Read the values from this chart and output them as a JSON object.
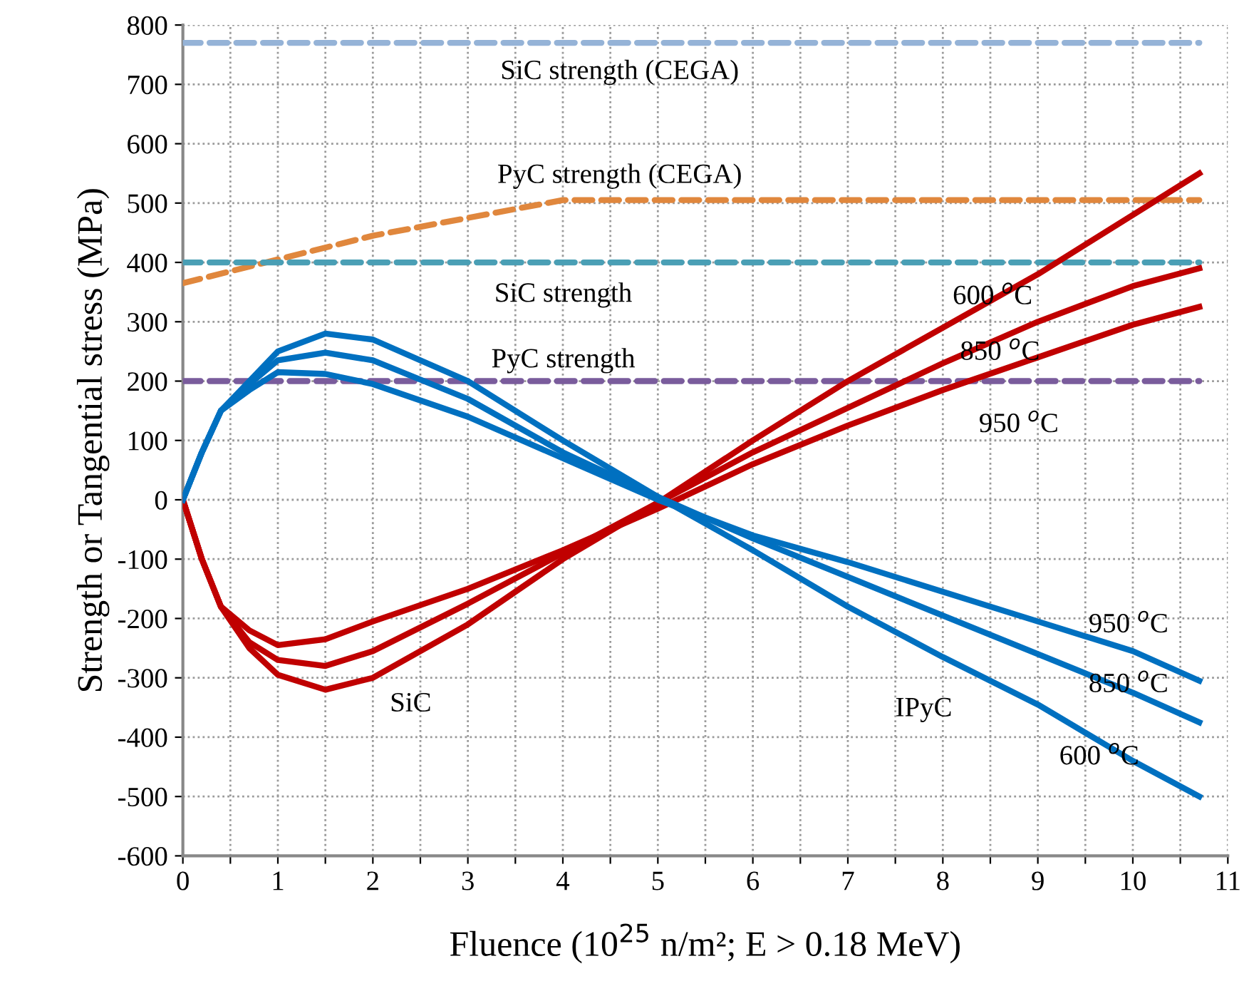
{
  "chart_data": {
    "type": "line",
    "xlabel": "Fluence (10$^{25}$ n/m²; E > 0.18 MeV)",
    "ylabel": "Strength or Tangential stress (MPa)",
    "xlim": [
      0,
      11
    ],
    "ylim": [
      -600,
      800
    ],
    "xticks": [
      0,
      {
        "value": 0.5,
        "label": null
      },
      1,
      {
        "value": 1.5,
        "label": null
      },
      2,
      {
        "value": 2.5,
        "label": null
      },
      3,
      {
        "value": 3.5,
        "label": null
      },
      4,
      {
        "value": 4.5,
        "label": null
      },
      5,
      {
        "value": 5.5,
        "label": null
      },
      6,
      {
        "value": 6.5,
        "label": null
      },
      7,
      {
        "value": 7.5,
        "label": null
      },
      8,
      {
        "value": 8.5,
        "label": null
      },
      9,
      {
        "value": 9.5,
        "label": null
      },
      10,
      {
        "value": 10.5,
        "label": null
      },
      11
    ],
    "yticks": [
      -600,
      -500,
      -400,
      -300,
      -200,
      -100,
      0,
      100,
      200,
      300,
      400,
      500,
      600,
      700,
      800
    ],
    "grid": true,
    "legend": false,
    "marker": "none",
    "series": [
      {
        "color": "#95b3d7",
        "line_style": "dashed",
        "x": [
          0,
          10.7
        ],
        "values": [
          770,
          770
        ]
      },
      {
        "color": "#e0873d",
        "line_style": "dashed",
        "x": [
          0,
          1,
          2,
          3,
          4,
          10.7
        ],
        "values": [
          365,
          405,
          445,
          475,
          505,
          505
        ]
      },
      {
        "color": "#4a9fb5",
        "line_style": "dashed",
        "x": [
          0,
          10.7
        ],
        "values": [
          400,
          400
        ]
      },
      {
        "color": "#7a5c9c",
        "line_style": "dashed",
        "x": [
          0,
          10.7
        ],
        "values": [
          200,
          200
        ]
      },
      {
        "color": "#c00000",
        "line_style": "solid",
        "x": [
          0,
          0.2,
          0.4,
          0.7,
          1,
          1.5,
          2,
          3,
          4,
          5,
          6,
          7,
          8,
          9,
          10,
          10.7
        ],
        "values": [
          0,
          -100,
          -180,
          -250,
          -295,
          -320,
          -300,
          -210,
          -100,
          -5,
          100,
          200,
          290,
          380,
          480,
          550
        ]
      },
      {
        "color": "#c00000",
        "line_style": "solid",
        "x": [
          0,
          0.2,
          0.4,
          0.7,
          1,
          1.5,
          2,
          3,
          4,
          5,
          6,
          7,
          8,
          9,
          10,
          10.7
        ],
        "values": [
          0,
          -100,
          -180,
          -240,
          -270,
          -280,
          -255,
          -175,
          -90,
          -5,
          80,
          155,
          230,
          300,
          360,
          390
        ]
      },
      {
        "color": "#c00000",
        "line_style": "solid",
        "x": [
          0,
          0.2,
          0.4,
          0.7,
          1,
          1.5,
          2,
          3,
          4,
          5,
          6,
          7,
          8,
          9,
          10,
          10.7
        ],
        "values": [
          0,
          -100,
          -180,
          -220,
          -245,
          -235,
          -205,
          -150,
          -85,
          -15,
          60,
          125,
          185,
          240,
          295,
          325
        ]
      },
      {
        "color": "#0070c0",
        "line_style": "solid",
        "x": [
          0,
          0.2,
          0.4,
          0.7,
          1,
          1.5,
          2,
          3,
          4,
          5,
          6,
          7,
          8,
          9,
          10,
          10.7
        ],
        "values": [
          0,
          80,
          150,
          200,
          250,
          280,
          270,
          200,
          100,
          5,
          -85,
          -180,
          -265,
          -345,
          -440,
          -500
        ]
      },
      {
        "color": "#0070c0",
        "line_style": "solid",
        "x": [
          0,
          0.2,
          0.4,
          0.7,
          1,
          1.5,
          2,
          3,
          4,
          5,
          6,
          7,
          8,
          9,
          10,
          10.7
        ],
        "values": [
          0,
          80,
          150,
          195,
          235,
          248,
          235,
          170,
          80,
          5,
          -65,
          -130,
          -195,
          -260,
          -325,
          -375
        ]
      },
      {
        "color": "#0070c0",
        "line_style": "solid",
        "x": [
          0,
          0.2,
          0.4,
          0.7,
          1,
          1.5,
          2,
          3,
          4,
          5,
          6,
          7,
          8,
          9,
          10,
          10.7
        ],
        "values": [
          0,
          80,
          150,
          185,
          215,
          212,
          195,
          140,
          70,
          0,
          -60,
          -105,
          -155,
          -205,
          -255,
          -305
        ]
      }
    ],
    "annotations": [
      "SiC strength (CEGA)",
      "PyC strength (CEGA)",
      "SiC strength",
      "PyC strength",
      "600 $^{o}$C",
      "850 $^{o}$C",
      "950 $^{o}$C",
      "950 $^{o}$C",
      "850 $^{o}$C",
      "600 $^{o}$C",
      "SiC",
      "IPyC"
    ]
  }
}
